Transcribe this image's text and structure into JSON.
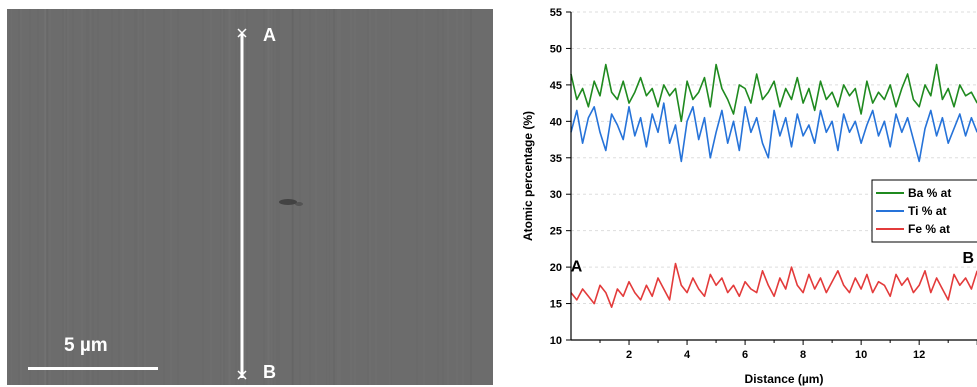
{
  "sem_image": {
    "start_label": "A",
    "end_label": "B",
    "scale_bar_label": "5 µm",
    "background_color": "#6e6e6e",
    "line_color": "#ffffff"
  },
  "chart_data": {
    "type": "line",
    "title": "",
    "xlabel": "Distance (µm)",
    "ylabel": "Atomic percentage (%)",
    "xlim": [
      0,
      14.2
    ],
    "ylim": [
      10,
      55
    ],
    "x_ticks": [
      2,
      4,
      6,
      8,
      10,
      12
    ],
    "y_ticks": [
      10,
      15,
      20,
      25,
      30,
      35,
      40,
      45,
      50,
      55
    ],
    "x": [
      0.0,
      0.2,
      0.4,
      0.6,
      0.8,
      1.0,
      1.2,
      1.4,
      1.6,
      1.8,
      2.0,
      2.2,
      2.4,
      2.6,
      2.8,
      3.0,
      3.2,
      3.4,
      3.6,
      3.8,
      4.0,
      4.2,
      4.4,
      4.6,
      4.8,
      5.0,
      5.2,
      5.4,
      5.6,
      5.8,
      6.0,
      6.2,
      6.4,
      6.6,
      6.8,
      7.0,
      7.2,
      7.4,
      7.6,
      7.8,
      8.0,
      8.2,
      8.4,
      8.6,
      8.8,
      9.0,
      9.2,
      9.4,
      9.6,
      9.8,
      10.0,
      10.2,
      10.4,
      10.6,
      10.8,
      11.0,
      11.2,
      11.4,
      11.6,
      11.8,
      12.0,
      12.2,
      12.4,
      12.6,
      12.8,
      13.0,
      13.2,
      13.4,
      13.6,
      13.8,
      14.0
    ],
    "series": [
      {
        "name": "Ba % at",
        "color": "#1f8a1f",
        "values": [
          46.5,
          43.0,
          44.5,
          42.0,
          45.5,
          43.5,
          47.8,
          44.0,
          43.0,
          45.5,
          42.5,
          44.0,
          46.0,
          43.5,
          44.5,
          42.0,
          45.0,
          43.5,
          44.5,
          40.0,
          45.5,
          43.0,
          44.0,
          46.0,
          42.0,
          47.8,
          44.5,
          43.0,
          41.0,
          45.0,
          44.5,
          42.5,
          46.5,
          43.0,
          44.0,
          45.5,
          42.0,
          44.5,
          43.0,
          46.0,
          42.5,
          44.5,
          41.5,
          45.5,
          43.0,
          44.0,
          42.0,
          45.0,
          43.5,
          44.5,
          41.0,
          45.5,
          42.5,
          44.0,
          43.0,
          45.0,
          42.0,
          44.5,
          46.5,
          43.0,
          42.0,
          45.0,
          43.5,
          47.8,
          43.0,
          44.5,
          42.0,
          45.0,
          43.5,
          44.0,
          42.5
        ]
      },
      {
        "name": "Ti % at",
        "color": "#2673d9",
        "values": [
          38.5,
          41.5,
          37.0,
          40.5,
          42.0,
          38.5,
          36.0,
          41.0,
          39.5,
          37.5,
          42.0,
          38.0,
          40.5,
          36.5,
          41.0,
          38.5,
          42.5,
          37.0,
          39.5,
          34.5,
          40.0,
          42.0,
          37.5,
          40.5,
          35.0,
          38.5,
          41.5,
          37.0,
          40.0,
          36.0,
          42.0,
          38.5,
          40.5,
          37.0,
          35.0,
          41.5,
          38.0,
          40.5,
          36.5,
          41.0,
          38.0,
          39.5,
          37.0,
          41.5,
          38.5,
          40.0,
          36.0,
          41.0,
          38.5,
          40.0,
          37.0,
          39.5,
          41.5,
          38.0,
          40.0,
          36.5,
          41.0,
          38.5,
          40.5,
          37.5,
          34.5,
          39.0,
          41.5,
          38.0,
          40.5,
          37.0,
          39.0,
          41.0,
          38.0,
          40.5,
          38.5
        ]
      },
      {
        "name": "Fe % at",
        "color": "#e33b3b",
        "values": [
          16.5,
          15.5,
          17.0,
          16.0,
          15.0,
          17.5,
          16.5,
          14.5,
          17.0,
          16.0,
          18.0,
          16.5,
          15.5,
          17.5,
          16.0,
          18.5,
          17.0,
          15.5,
          20.5,
          17.5,
          16.5,
          18.5,
          17.0,
          16.0,
          19.0,
          17.5,
          18.5,
          16.5,
          17.5,
          16.0,
          18.0,
          17.0,
          16.5,
          19.5,
          17.5,
          16.0,
          18.5,
          17.0,
          20.0,
          17.5,
          16.5,
          19.0,
          17.0,
          18.5,
          16.5,
          18.0,
          19.5,
          17.5,
          16.5,
          18.5,
          17.0,
          19.0,
          16.5,
          18.0,
          17.5,
          16.0,
          19.0,
          17.5,
          18.5,
          16.5,
          17.5,
          19.5,
          16.5,
          18.5,
          17.0,
          15.5,
          19.0,
          17.5,
          18.5,
          17.0,
          19.5
        ]
      }
    ],
    "annotations": [
      {
        "text": "A",
        "x": 0.2,
        "y": 20.2
      },
      {
        "text": "B",
        "x": 13.7,
        "y": 21.4
      }
    ],
    "legend_position": "right",
    "grid": true
  }
}
